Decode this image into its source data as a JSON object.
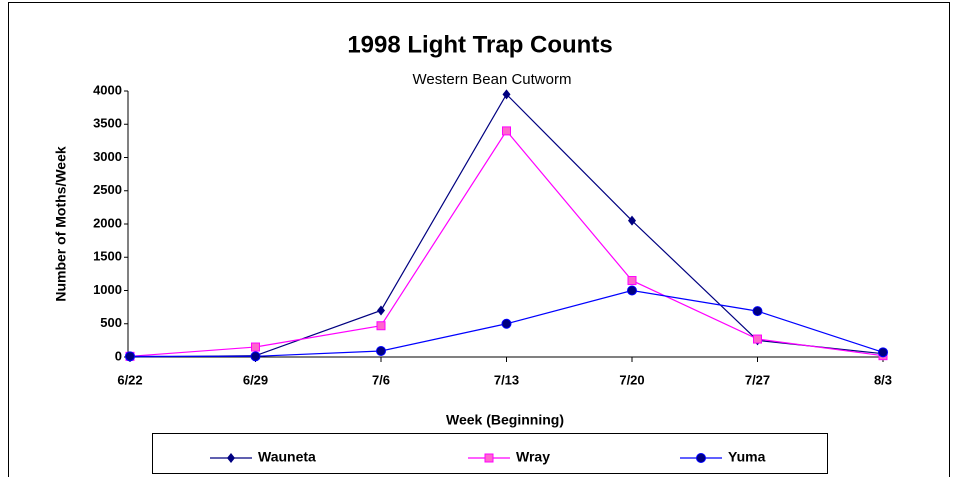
{
  "chart_data": {
    "type": "line",
    "title": "1998 Light Trap Counts",
    "subtitle": "Western Bean Cutworm",
    "x_label": "Week (Beginning)",
    "y_label": "Number of Moths/Week",
    "categories": [
      "6/22",
      "6/29",
      "7/6",
      "7/13",
      "7/20",
      "7/27",
      "8/3"
    ],
    "series": [
      {
        "name": "Wauneta",
        "color": "#000080",
        "marker": "diamond",
        "values": [
          0,
          20,
          700,
          3950,
          2050,
          250,
          50
        ]
      },
      {
        "name": "Wray",
        "color": "#ff00ff",
        "marker": "square",
        "values": [
          10,
          150,
          470,
          3400,
          1150,
          270,
          20
        ]
      },
      {
        "name": "Yuma",
        "color": "#0000ff",
        "marker": "circle",
        "values": [
          10,
          10,
          90,
          500,
          1000,
          690,
          70
        ]
      }
    ],
    "ylim": [
      0,
      4000
    ],
    "yticks": [
      0,
      500,
      1000,
      1500,
      2000,
      2500,
      3000,
      3500,
      4000
    ],
    "grid": false,
    "legend": "bottom"
  }
}
